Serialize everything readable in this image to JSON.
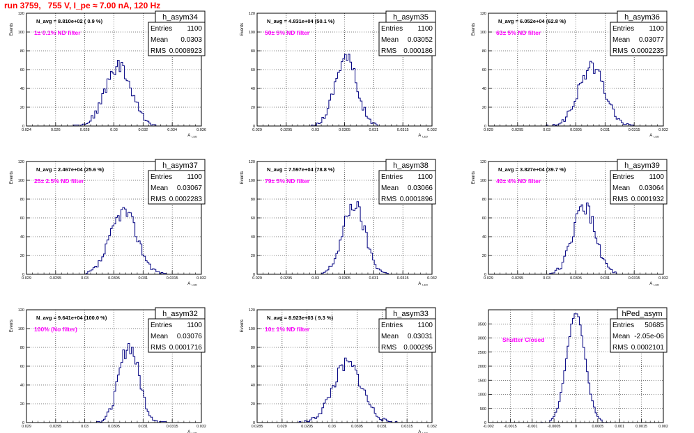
{
  "header": {
    "run_title": "run 3759,   755 V, I_pe ≈ 7.00 nA, 120 Hz"
  },
  "colors": {
    "histogram": "#000080",
    "annotation": "#ff00ff",
    "title": "#ff0000",
    "frame": "#000000",
    "grid": "#000000"
  },
  "chart_data": [
    {
      "type": "bar",
      "subtype": "histogram",
      "hist_name": "h_asym34",
      "stats": {
        "entries_label": "Entries",
        "entries": "1100",
        "mean_label": "Mean",
        "mean": "0.0303",
        "rms_label": "RMS",
        "rms": "0.0008923"
      },
      "navg": "N_avg = 8.810e+02 ( 0.9 %)",
      "note": "1± 0.1% ND filter",
      "xlabel": "A_LED",
      "ylabel": "Events",
      "xlim": [
        0.024,
        0.036
      ],
      "ylim": [
        0,
        120
      ],
      "xticks": [
        "0.024",
        "0.026",
        "0.028",
        "0.03",
        "0.032",
        "0.034",
        "0.036"
      ],
      "yticks": [
        "0",
        "20",
        "40",
        "60",
        "80",
        "100",
        "120"
      ],
      "dist": {
        "center": 0.0303,
        "sigma": 0.0008923,
        "peak": 64,
        "xmin": 0.0269,
        "xmax": 0.0338,
        "seed": 34
      }
    },
    {
      "type": "bar",
      "subtype": "histogram",
      "hist_name": "h_asym35",
      "stats": {
        "entries_label": "Entries",
        "entries": "1100",
        "mean_label": "Mean",
        "mean": "0.03052",
        "rms_label": "RMS",
        "rms": "0.000186"
      },
      "navg": "N_avg = 4.831e+04 (50.1 %)",
      "note": "50± 5% ND filter",
      "xlabel": "A_LED",
      "ylabel": "Events",
      "xlim": [
        0.029,
        0.032
      ],
      "ylim": [
        0,
        120
      ],
      "xticks": [
        "0.029",
        "0.0295",
        "0.03",
        "0.0305",
        "0.031",
        "0.0315",
        "0.032"
      ],
      "yticks": [
        "0",
        "20",
        "40",
        "60",
        "80",
        "100",
        "120"
      ],
      "dist": {
        "center": 0.03052,
        "sigma": 0.000186,
        "peak": 74,
        "xmin": 0.02985,
        "xmax": 0.03115,
        "seed": 35
      }
    },
    {
      "type": "bar",
      "subtype": "histogram",
      "hist_name": "h_asym36",
      "stats": {
        "entries_label": "Entries",
        "entries": "1100",
        "mean_label": "Mean",
        "mean": "0.03077",
        "rms_label": "RMS",
        "rms": "0.0002235"
      },
      "navg": "N_avg = 6.052e+04 (62.8 %)",
      "note": "63± 5% ND filter",
      "xlabel": "A_LED",
      "ylabel": "Events",
      "xlim": [
        0.029,
        0.032
      ],
      "ylim": [
        0,
        120
      ],
      "xticks": [
        "0.029",
        "0.0295",
        "0.03",
        "0.0305",
        "0.031",
        "0.0315",
        "0.032"
      ],
      "yticks": [
        "0",
        "20",
        "40",
        "60",
        "80",
        "100",
        "120"
      ],
      "dist": {
        "center": 0.03077,
        "sigma": 0.0002235,
        "peak": 63,
        "xmin": 0.03,
        "xmax": 0.0315,
        "seed": 36
      }
    },
    {
      "type": "bar",
      "subtype": "histogram",
      "hist_name": "h_asym37",
      "stats": {
        "entries_label": "Entries",
        "entries": "1100",
        "mean_label": "Mean",
        "mean": "0.03067",
        "rms_label": "RMS",
        "rms": "0.0002283"
      },
      "navg": "N_avg = 2.467e+04 (25.6 %)",
      "note": "25± 2.5% ND filter",
      "xlabel": "A_LED",
      "ylabel": "Events",
      "xlim": [
        0.029,
        0.032
      ],
      "ylim": [
        0,
        120
      ],
      "xticks": [
        "0.029",
        "0.0295",
        "0.03",
        "0.0305",
        "0.031",
        "0.0315",
        "0.032"
      ],
      "yticks": [
        "0",
        "20",
        "40",
        "60",
        "80",
        "100",
        "120"
      ],
      "dist": {
        "center": 0.03067,
        "sigma": 0.0002283,
        "peak": 67,
        "xmin": 0.02995,
        "xmax": 0.0314,
        "seed": 37
      }
    },
    {
      "type": "bar",
      "subtype": "histogram",
      "hist_name": "h_asym38",
      "stats": {
        "entries_label": "Entries",
        "entries": "1100",
        "mean_label": "Mean",
        "mean": "0.03066",
        "rms_label": "RMS",
        "rms": "0.0001896"
      },
      "navg": "N_avg = 7.597e+04 (78.8 %)",
      "note": "79± 5% ND filter",
      "xlabel": "A_LED",
      "ylabel": "Events",
      "xlim": [
        0.029,
        0.032
      ],
      "ylim": [
        0,
        120
      ],
      "xticks": [
        "0.029",
        "0.0295",
        "0.03",
        "0.0305",
        "0.031",
        "0.0315",
        "0.032"
      ],
      "yticks": [
        "0",
        "20",
        "40",
        "60",
        "80",
        "100",
        "120"
      ],
      "dist": {
        "center": 0.03066,
        "sigma": 0.0001896,
        "peak": 74,
        "xmin": 0.03005,
        "xmax": 0.0313,
        "seed": 38
      }
    },
    {
      "type": "bar",
      "subtype": "histogram",
      "hist_name": "h_asym39",
      "stats": {
        "entries_label": "Entries",
        "entries": "1100",
        "mean_label": "Mean",
        "mean": "0.03064",
        "rms_label": "RMS",
        "rms": "0.0001932"
      },
      "navg": "N_avg = 3.827e+04 (39.7 %)",
      "note": "40± 4% ND filter",
      "xlabel": "A_LED",
      "ylabel": "Events",
      "xlim": [
        0.029,
        0.032
      ],
      "ylim": [
        0,
        120
      ],
      "xticks": [
        "0.029",
        "0.0295",
        "0.03",
        "0.0305",
        "0.031",
        "0.0315",
        "0.032"
      ],
      "yticks": [
        "0",
        "20",
        "40",
        "60",
        "80",
        "100",
        "120"
      ],
      "dist": {
        "center": 0.03064,
        "sigma": 0.0001932,
        "peak": 72,
        "xmin": 0.03,
        "xmax": 0.0313,
        "seed": 39
      }
    },
    {
      "type": "bar",
      "subtype": "histogram",
      "hist_name": "h_asym32",
      "stats": {
        "entries_label": "Entries",
        "entries": "1100",
        "mean_label": "Mean",
        "mean": "0.03076",
        "rms_label": "RMS",
        "rms": "0.0001716"
      },
      "navg": "N_avg = 9.641e+04 (100.0 %)",
      "note": "100% (No filter)",
      "xlabel": "A_LED",
      "ylabel": "Events",
      "xlim": [
        0.029,
        0.032
      ],
      "ylim": [
        0,
        120
      ],
      "xticks": [
        "0.029",
        "0.0295",
        "0.03",
        "0.0305",
        "0.031",
        "0.0315",
        "0.032"
      ],
      "yticks": [
        "0",
        "20",
        "40",
        "60",
        "80",
        "100",
        "120"
      ],
      "dist": {
        "center": 0.03076,
        "sigma": 0.0001716,
        "peak": 82,
        "xmin": 0.0302,
        "xmax": 0.0314,
        "seed": 32
      }
    },
    {
      "type": "bar",
      "subtype": "histogram",
      "hist_name": "h_asym33",
      "stats": {
        "entries_label": "Entries",
        "entries": "1100",
        "mean_label": "Mean",
        "mean": "0.03031",
        "rms_label": "RMS",
        "rms": "0.000295"
      },
      "navg": "N_avg = 8.923e+03 ( 9.3 %)",
      "note": "10± 1% ND filter",
      "xlabel": "A_LED",
      "ylabel": "Events",
      "xlim": [
        0.0285,
        0.032
      ],
      "ylim": [
        0,
        120
      ],
      "xticks": [
        "0.0285",
        "0.029",
        "0.0295",
        "0.03",
        "0.0305",
        "0.031",
        "0.0315",
        "0.032"
      ],
      "yticks": [
        "0",
        "20",
        "40",
        "60",
        "80",
        "100",
        "120"
      ],
      "dist": {
        "center": 0.03031,
        "sigma": 0.000295,
        "peak": 62,
        "xmin": 0.0293,
        "xmax": 0.0313,
        "seed": 33
      }
    },
    {
      "type": "bar",
      "subtype": "histogram",
      "hist_name": "hPed_asym",
      "stats": {
        "entries_label": "Entries",
        "entries": "50685",
        "mean_label": "Mean",
        "mean": "-2.05e-06",
        "rms_label": "RMS",
        "rms": "0.0002101"
      },
      "navg": "",
      "note": "Shutter Closed",
      "xlabel": "",
      "ylabel": "",
      "xlim": [
        -0.002,
        0.002
      ],
      "ylim": [
        0,
        4000
      ],
      "xticks": [
        "-0.002",
        "-0.0015",
        "-0.001",
        "-0.0005",
        "0",
        "0.0005",
        "0.001",
        "0.0015",
        "0.002"
      ],
      "yticks": [
        "0",
        "500",
        "1000",
        "1500",
        "2000",
        "2500",
        "3000",
        "3500"
      ],
      "dist": {
        "center": 0.0,
        "sigma": 0.0002101,
        "peak": 3850,
        "xmin": -0.0008,
        "xmax": 0.0008,
        "seed": 99
      }
    }
  ]
}
